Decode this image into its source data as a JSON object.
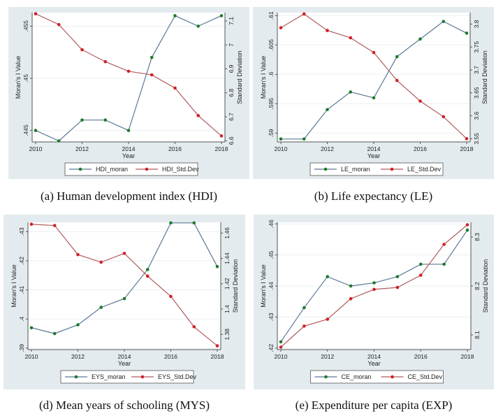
{
  "chart_data": [
    {
      "id": "a",
      "type": "line",
      "caption": "(a) Human development index (HDI)",
      "xlabel": "Year",
      "ylabel_left": "Moran's I Value",
      "ylabel_right": "Standard Deviation",
      "x": [
        2010,
        2011,
        2012,
        2013,
        2014,
        2015,
        2016,
        2017,
        2018
      ],
      "xticks": [
        2010,
        2012,
        2014,
        2016,
        2018
      ],
      "yticks_left": [
        0.445,
        0.45,
        0.455
      ],
      "yticks_left_labels": [
        ".445",
        ".45",
        ".455"
      ],
      "ylim_left": [
        0.4439,
        0.4563
      ],
      "yticks_right": [
        6.6,
        6.7,
        6.8,
        6.9,
        7,
        7.1
      ],
      "yticks_right_labels": [
        "6.6",
        "6.7",
        "6.8",
        "6.9",
        "7",
        "7.1"
      ],
      "ylim_right": [
        6.595,
        7.135
      ],
      "grid": true,
      "legend_position": "bottom",
      "series": [
        {
          "name": "HDI_moran",
          "axis": "left",
          "values": [
            0.445,
            0.444,
            0.446,
            0.446,
            0.445,
            0.452,
            0.456,
            0.455,
            0.456
          ]
        },
        {
          "name": "HDI_Std.Dev",
          "axis": "right",
          "values": [
            7.13,
            7.085,
            6.98,
            6.93,
            6.89,
            6.875,
            6.82,
            6.705,
            6.62
          ]
        }
      ]
    },
    {
      "id": "b",
      "type": "line",
      "caption": "(b) Life expectancy (LE)",
      "xlabel": "Year",
      "ylabel_left": "Moran's I Value",
      "ylabel_right": "Standard Deviation",
      "x": [
        2010,
        2011,
        2012,
        2013,
        2014,
        2015,
        2016,
        2017,
        2018
      ],
      "xticks": [
        2010,
        2012,
        2014,
        2016,
        2018
      ],
      "yticks_left": [
        0.59,
        0.595,
        0.6,
        0.605,
        0.61
      ],
      "yticks_left_labels": [
        ".59",
        ".595",
        ".6",
        ".605",
        ".61"
      ],
      "ylim_left": [
        0.5885,
        0.6105
      ],
      "yticks_right": [
        3.55,
        3.6,
        3.65,
        3.7,
        3.75,
        3.8
      ],
      "yticks_right_labels": [
        "3.55",
        "3.6",
        "3.65",
        "3.7",
        "3.75",
        "3.8"
      ],
      "ylim_right": [
        3.543,
        3.825
      ],
      "grid": true,
      "legend_position": "bottom",
      "series": [
        {
          "name": "LE_moran",
          "axis": "left",
          "values": [
            0.589,
            0.589,
            0.594,
            0.597,
            0.596,
            0.603,
            0.606,
            0.609,
            0.607
          ]
        },
        {
          "name": "LE_Std.Dev",
          "axis": "right",
          "values": [
            3.792,
            3.822,
            3.786,
            3.77,
            3.738,
            3.677,
            3.632,
            3.598,
            3.55
          ]
        }
      ]
    },
    {
      "id": "d",
      "type": "line",
      "caption": "(d) Mean years of schooling (MYS)",
      "xlabel": "Year",
      "ylabel_left": "Moran's I Value",
      "ylabel_right": "Standard Deviation",
      "x": [
        2010,
        2011,
        2012,
        2013,
        2014,
        2015,
        2016,
        2017,
        2018
      ],
      "xticks": [
        2010,
        2012,
        2014,
        2016,
        2018
      ],
      "yticks_left": [
        0.39,
        0.4,
        0.41,
        0.42,
        0.43
      ],
      "yticks_left_labels": [
        ".39",
        ".4",
        ".41",
        ".42",
        ".43"
      ],
      "ylim_left": [
        0.3895,
        0.4332
      ],
      "yticks_right": [
        1.38,
        1.4,
        1.42,
        1.44,
        1.46
      ],
      "yticks_right_labels": [
        "1.38",
        "1.4",
        "1.42",
        "1.44",
        "1.46"
      ],
      "ylim_right": [
        1.368,
        1.4685
      ],
      "grid": true,
      "legend_position": "bottom",
      "series": [
        {
          "name": "EYS_moran",
          "axis": "left",
          "values": [
            0.397,
            0.395,
            0.398,
            0.404,
            0.407,
            0.417,
            0.433,
            0.433,
            0.418
          ]
        },
        {
          "name": "EYS_Std.Dev",
          "axis": "right",
          "values": [
            1.467,
            1.466,
            1.443,
            1.437,
            1.444,
            1.426,
            1.41,
            1.386,
            1.371
          ]
        }
      ]
    },
    {
      "id": "e",
      "type": "line",
      "caption": "(e) Expenditure per capita (EXP)",
      "xlabel": "Year",
      "ylabel_left": "Moran's I Value",
      "ylabel_right": "Standard Deviation",
      "x": [
        2010,
        2011,
        2012,
        2013,
        2014,
        2015,
        2016,
        2017,
        2018
      ],
      "xticks": [
        2010,
        2012,
        2014,
        2016,
        2018
      ],
      "yticks_left": [
        0.42,
        0.43,
        0.44,
        0.45,
        0.46
      ],
      "yticks_left_labels": [
        ".42",
        ".43",
        ".44",
        ".45",
        ".46"
      ],
      "ylim_left": [
        0.4195,
        0.4605
      ],
      "yticks_right": [
        8.1,
        8.2,
        8.3
      ],
      "yticks_right_labels": [
        "8.1",
        "8.2",
        "8.3"
      ],
      "ylim_right": [
        8.07,
        8.33
      ],
      "grid": true,
      "legend_position": "bottom",
      "series": [
        {
          "name": "CE_moran",
          "axis": "left",
          "values": [
            0.422,
            0.433,
            0.443,
            0.44,
            0.441,
            0.443,
            0.447,
            0.447,
            0.458
          ]
        },
        {
          "name": "CE_Std.Dev",
          "axis": "right",
          "values": [
            8.075,
            8.118,
            8.132,
            8.174,
            8.193,
            8.197,
            8.222,
            8.285,
            8.325
          ]
        }
      ]
    }
  ],
  "colors": {
    "moran_line": "#5b7896",
    "moran_marker": "#1b7b2b",
    "std_line": "#b25b5e",
    "std_marker": "#d11f26"
  }
}
